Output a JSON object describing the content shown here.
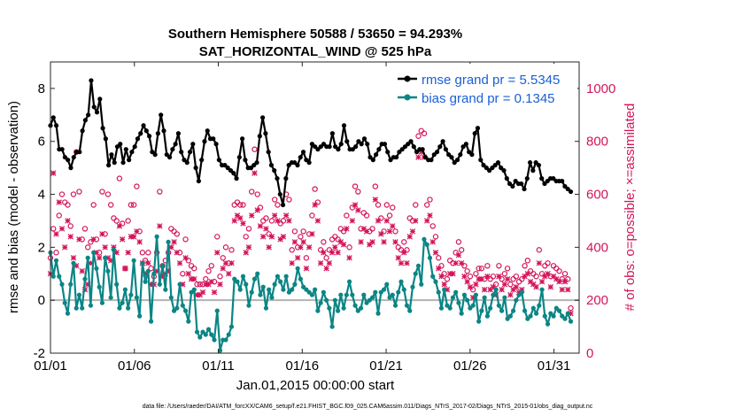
{
  "chart_data": {
    "type": "line",
    "title_line1": "Southern Hemisphere 50588 / 53650 = 94.293%",
    "title_line2": "SAT_HORIZONTAL_WIND @ 525 hPa",
    "xlabel": "Jan.01,2015 00:00:00 start",
    "ylabel_left": "rmse and bias (model - observation)",
    "ylabel_right": "# of obs: o=possible; ×=assimilated",
    "footnote": "data file: /Users/raeder/DAI/ATM_forcXX/CAM6_setup/f.e21.FHIST_BGC.f09_025.CAM6assim.011/Diags_NTrS_2017-02/Diags_NTrS_2015-01/obs_diag_output.nc",
    "xlim": [
      0,
      31.5
    ],
    "ylim_left": [
      -2,
      9
    ],
    "ylim_right": [
      0,
      1100
    ],
    "x_ticks": [
      0,
      5,
      10,
      15,
      20,
      25,
      30
    ],
    "x_tick_labels": [
      "01/01",
      "01/06",
      "01/11",
      "01/16",
      "01/21",
      "01/26",
      "01/31"
    ],
    "y_ticks_left": [
      -2,
      0,
      2,
      4,
      6,
      8
    ],
    "y_ticks_right": [
      0,
      200,
      400,
      600,
      800,
      1000
    ],
    "colors": {
      "rmse": "#000000",
      "bias": "#0b8585",
      "obs": "#d4145a",
      "zero_line": "#b3b3b3",
      "legend_text": "#1a5fd6"
    },
    "legend": [
      {
        "name": "rmse grand pr = 5.5345",
        "series": "rmse"
      },
      {
        "name": "bias grand pr = 0.1345",
        "series": "bias"
      }
    ],
    "series": [
      {
        "name": "rmse",
        "axis": "left",
        "values": [
          6.6,
          6.9,
          6.6,
          5.7,
          5.7,
          5.4,
          5.3,
          5.0,
          5.4,
          5.6,
          5.6,
          6.4,
          6.8,
          7.0,
          8.3,
          7.3,
          7.1,
          7.6,
          6.5,
          6.1,
          5.1,
          5.5,
          5.2,
          5.8,
          5.9,
          5.2,
          5.7,
          5.3,
          5.6,
          5.8,
          6.1,
          6.3,
          6.6,
          6.4,
          6.2,
          5.6,
          5.5,
          6.3,
          7.0,
          6.4,
          5.5,
          5.4,
          5.7,
          5.9,
          6.3,
          5.6,
          5.3,
          5.2,
          5.6,
          5.9,
          5.0,
          4.5,
          5.3,
          6.0,
          6.4,
          6.1,
          6.1,
          5.9,
          5.3,
          5.1,
          5.1,
          5.0,
          4.9,
          4.8,
          4.6,
          5.4,
          6.1,
          5.3,
          5.0,
          5.0,
          5.1,
          5.2,
          6.2,
          6.9,
          6.3,
          5.6,
          5.1,
          4.9,
          4.6,
          4.0,
          3.6,
          4.6,
          5.1,
          5.2,
          5.2,
          5.1,
          5.4,
          5.6,
          5.3,
          5.2,
          5.9,
          5.8,
          5.7,
          5.8,
          5.9,
          5.8,
          5.8,
          6.3,
          5.8,
          5.7,
          5.9,
          6.6,
          6.0,
          5.7,
          5.7,
          5.8,
          6.0,
          5.9,
          6.1,
          5.9,
          5.4,
          5.3,
          5.5,
          5.7,
          5.9,
          5.9,
          5.6,
          5.3,
          5.4,
          5.4,
          5.6,
          5.7,
          5.8,
          5.9,
          6.0,
          5.8,
          5.6,
          5.7,
          5.7,
          5.4,
          5.3,
          5.3,
          5.5,
          5.6,
          5.8,
          6.0,
          5.7,
          5.5,
          5.4,
          5.2,
          5.3,
          5.5,
          5.8,
          5.9,
          5.6,
          5.5,
          6.3,
          6.5,
          5.3,
          5.1,
          5.0,
          4.9,
          5.0,
          5.1,
          5.2,
          5.0,
          4.9,
          4.6,
          4.4,
          4.3,
          4.5,
          4.4,
          4.4,
          4.2,
          4.6,
          5.2,
          4.9,
          5.2,
          5.1,
          4.6,
          4.4,
          4.5,
          4.6,
          4.6,
          4.5,
          4.5,
          4.5,
          4.3,
          4.2,
          4.1
        ]
      },
      {
        "name": "bias",
        "axis": "left",
        "values": [
          1.8,
          0.9,
          1.5,
          0.9,
          0.6,
          -0.1,
          -0.5,
          0.6,
          1.4,
          -0.3,
          0.2,
          -0.3,
          0.8,
          1.6,
          -0.2,
          1.8,
          1.2,
          0.5,
          -0.1,
          1.6,
          1.1,
          0.1,
          1.9,
          0.6,
          -0.3,
          -0.1,
          0.4,
          -0.3,
          0.2,
          1.5,
          0.1,
          -0.6,
          1.4,
          0.7,
          1.1,
          -0.8,
          1.0,
          2.4,
          0.6,
          1.3,
          0.4,
          2.2,
          0.1,
          -0.4,
          -0.3,
          0.6,
          -0.2,
          -0.4,
          -0.8,
          0.3,
          0.4,
          -1.2,
          -1.4,
          -1.2,
          -1.3,
          -1.1,
          -1.3,
          -1.5,
          -0.4,
          -1.9,
          -1.5,
          -1.5,
          -1.3,
          -1.0,
          0.8,
          0.7,
          0.4,
          0.9,
          0.6,
          -0.2,
          0.3,
          0.8,
          1.0,
          0.2,
          0.5,
          -0.3,
          0.4,
          0.1,
          0.6,
          0.9,
          0.7,
          0.4,
          0.9,
          0.3,
          0.4,
          0.6,
          1.2,
          0.8,
          0.5,
          0.4,
          0.3,
          0.2,
          0.4,
          -0.4,
          -0.1,
          0.3,
          0.0,
          -0.3,
          -1.0,
          0.0,
          -0.4,
          0.2,
          -0.3,
          0.2,
          0.7,
          0.2,
          -0.2,
          -0.4,
          -0.3,
          0.2,
          -0.1,
          0.0,
          0.1,
          0.3,
          -0.5,
          0.3,
          0.4,
          0.6,
          0.1,
          0.2,
          -0.2,
          0.3,
          0.7,
          0.4,
          -0.2,
          -0.4,
          0.5,
          1.0,
          1.3,
          0.6,
          2.3,
          2.1,
          1.6,
          0.9,
          0.7,
          0.3,
          -0.3,
          0.4,
          -0.2,
          -0.3,
          0.1,
          0.3,
          -0.1,
          -0.5,
          0.2,
          0.0,
          -0.3,
          -0.2,
          0.2,
          -0.8,
          -0.4,
          0.1,
          -0.6,
          -0.3,
          0.2,
          0.4,
          -0.2,
          -0.4,
          0.1,
          -0.7,
          -0.6,
          -0.4,
          0.0,
          0.2,
          0.3,
          -0.4,
          -0.7,
          -0.6,
          -0.3,
          -0.5,
          -0.2,
          0.4,
          -0.6,
          -0.9,
          -0.5,
          -0.6,
          -0.3,
          -0.4,
          -0.6,
          -0.7,
          -0.5,
          -0.8
        ]
      },
      {
        "name": "obs_possible",
        "axis": "right",
        "marker": "circle",
        "values": [
          360,
          470,
          380,
          520,
          600,
          570,
          560,
          480,
          600,
          760,
          610,
          430,
          470,
          400,
          420,
          560,
          430,
          380,
          610,
          450,
          600,
          560,
          510,
          500,
          660,
          490,
          320,
          500,
          560,
          560,
          630,
          460,
          380,
          350,
          380,
          320,
          290,
          380,
          610,
          330,
          350,
          380,
          470,
          460,
          450,
          380,
          300,
          430,
          350,
          330,
          320,
          260,
          260,
          260,
          280,
          310,
          330,
          270,
          440,
          290,
          360,
          400,
          340,
          390,
          560,
          570,
          560,
          560,
          440,
          470,
          610,
          770,
          600,
          550,
          500,
          510,
          450,
          500,
          580,
          560,
          490,
          500,
          600,
          580,
          390,
          460,
          400,
          440,
          460,
          360,
          450,
          520,
          620,
          570,
          390,
          420,
          360,
          390,
          430,
          440,
          430,
          470,
          460,
          520,
          400,
          550,
          630,
          610,
          470,
          530,
          520,
          460,
          470,
          630,
          560,
          510,
          460,
          560,
          520,
          550,
          460,
          400,
          390,
          420,
          390,
          510,
          500,
          560,
          820,
          840,
          830,
          560,
          580,
          480,
          440,
          360,
          330,
          300,
          280,
          350,
          340,
          380,
          420,
          390,
          330,
          310,
          290,
          240,
          300,
          320,
          320,
          280,
          330,
          280,
          290,
          260,
          330,
          280,
          300,
          320,
          260,
          280,
          290,
          270,
          280,
          330,
          350,
          310,
          300,
          290,
          390,
          300,
          330,
          340,
          290,
          330,
          320,
          310,
          280,
          300,
          280,
          170
        ]
      },
      {
        "name": "obs_assimilated",
        "axis": "right",
        "marker": "cross",
        "values": [
          300,
          680,
          450,
          570,
          470,
          400,
          500,
          440,
          360,
          330,
          430,
          310,
          240,
          260,
          340,
          430,
          380,
          360,
          450,
          400,
          360,
          350,
          400,
          380,
          480,
          430,
          320,
          380,
          440,
          440,
          460,
          420,
          340,
          300,
          340,
          260,
          260,
          310,
          480,
          290,
          300,
          310,
          400,
          420,
          380,
          340,
          260,
          360,
          300,
          280,
          280,
          220,
          220,
          230,
          260,
          260,
          270,
          230,
          380,
          260,
          320,
          340,
          300,
          340,
          500,
          520,
          510,
          490,
          380,
          400,
          520,
          680,
          540,
          480,
          440,
          470,
          400,
          440,
          520,
          500,
          430,
          440,
          520,
          500,
          340,
          420,
          360,
          400,
          420,
          320,
          400,
          450,
          560,
          500,
          340,
          380,
          320,
          340,
          380,
          400,
          380,
          420,
          410,
          470,
          360,
          500,
          560,
          540,
          420,
          470,
          460,
          410,
          420,
          580,
          500,
          450,
          420,
          500,
          460,
          480,
          420,
          360,
          340,
          380,
          340,
          440,
          460,
          500,
          740,
          760,
          740,
          500,
          520,
          420,
          380,
          320,
          290,
          260,
          240,
          300,
          300,
          340,
          370,
          340,
          290,
          270,
          250,
          210,
          260,
          280,
          280,
          240,
          290,
          240,
          250,
          220,
          290,
          240,
          260,
          280,
          220,
          240,
          250,
          230,
          240,
          290,
          300,
          270,
          260,
          250,
          340,
          270,
          290,
          300,
          250,
          290,
          280,
          270,
          240,
          270,
          240,
          150
        ]
      }
    ]
  }
}
